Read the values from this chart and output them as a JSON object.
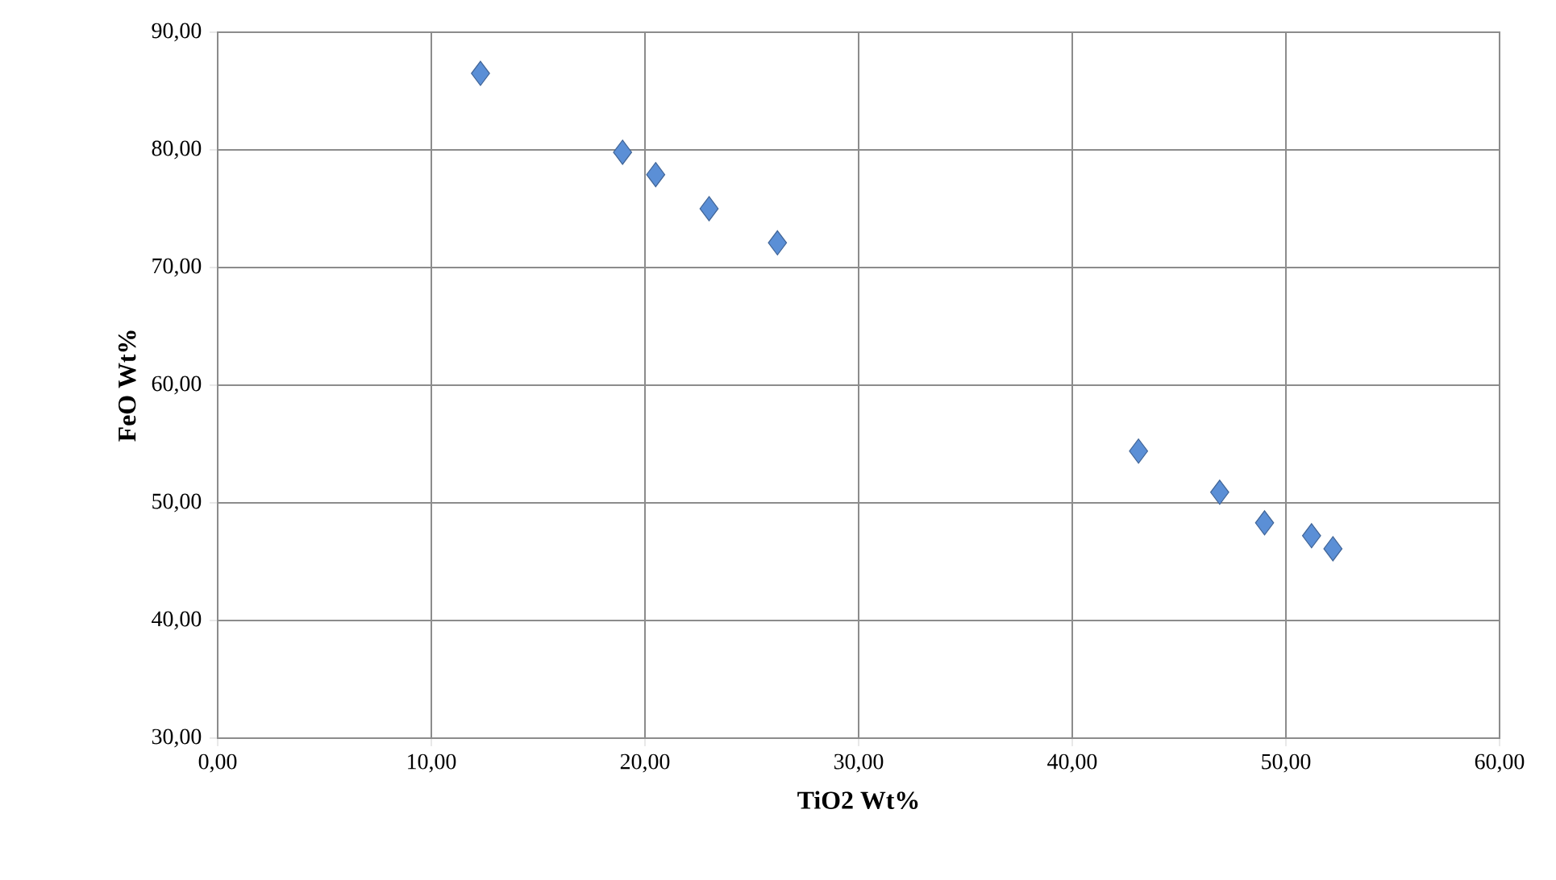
{
  "chart_data": {
    "type": "scatter",
    "xlabel": "TiO2 Wt%",
    "ylabel": "FeO Wt%",
    "x": [
      12.3,
      18.95,
      20.5,
      23.0,
      26.2,
      43.1,
      46.9,
      49.0,
      51.2,
      52.2
    ],
    "values": [
      86.5,
      79.8,
      77.9,
      75.0,
      72.1,
      54.4,
      50.9,
      48.3,
      47.2,
      46.1
    ],
    "color": "#5b8fd6",
    "marker": "diamond",
    "grid": true,
    "xlim": [
      0,
      60
    ],
    "ylim": [
      30,
      90
    ],
    "xticks": [
      {
        "value": 0,
        "label": "0,00"
      },
      {
        "value": 10,
        "label": "10,00"
      },
      {
        "value": 20,
        "label": "20,00"
      },
      {
        "value": 30,
        "label": "30,00"
      },
      {
        "value": 40,
        "label": "40,00"
      },
      {
        "value": 50,
        "label": "50,00"
      },
      {
        "value": 60,
        "label": "60,00"
      }
    ],
    "yticks": [
      {
        "value": 30,
        "label": "30,00"
      },
      {
        "value": 40,
        "label": "40,00"
      },
      {
        "value": 50,
        "label": "50,00"
      },
      {
        "value": 60,
        "label": "60,00"
      },
      {
        "value": 70,
        "label": "70,00"
      },
      {
        "value": 80,
        "label": "80,00"
      },
      {
        "value": 90,
        "label": "90,00"
      }
    ]
  }
}
